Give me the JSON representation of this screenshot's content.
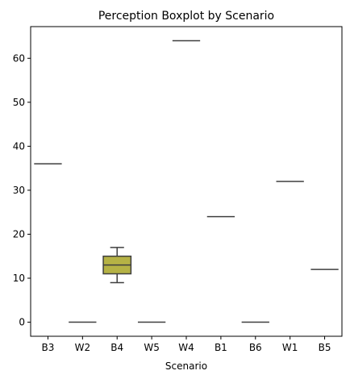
{
  "chart_data": {
    "type": "box",
    "title": "Perception Boxplot by Scenario",
    "xlabel": "Scenario",
    "ylabel": "",
    "ylim": [
      -3.2,
      67.2
    ],
    "yticks": [
      0,
      10,
      20,
      30,
      40,
      50,
      60
    ],
    "grid": false,
    "box_color": "#b5b245",
    "line_color": "#3f3f3f",
    "categories": [
      "B3",
      "W2",
      "B4",
      "W5",
      "W4",
      "B1",
      "B6",
      "W1",
      "B5"
    ],
    "boxes": [
      {
        "category": "B3",
        "min": 36,
        "q1": 36,
        "median": 36,
        "q3": 36,
        "max": 36
      },
      {
        "category": "W2",
        "min": 0,
        "q1": 0,
        "median": 0,
        "q3": 0,
        "max": 0
      },
      {
        "category": "B4",
        "min": 9,
        "q1": 11,
        "median": 13,
        "q3": 15,
        "max": 17
      },
      {
        "category": "W5",
        "min": 0,
        "q1": 0,
        "median": 0,
        "q3": 0,
        "max": 0
      },
      {
        "category": "W4",
        "min": 64,
        "q1": 64,
        "median": 64,
        "q3": 64,
        "max": 64
      },
      {
        "category": "B1",
        "min": 24,
        "q1": 24,
        "median": 24,
        "q3": 24,
        "max": 24
      },
      {
        "category": "B6",
        "min": 0,
        "q1": 0,
        "median": 0,
        "q3": 0,
        "max": 0
      },
      {
        "category": "W1",
        "min": 32,
        "q1": 32,
        "median": 32,
        "q3": 32,
        "max": 32
      },
      {
        "category": "B5",
        "min": 12,
        "q1": 12,
        "median": 12,
        "q3": 12,
        "max": 12
      }
    ]
  }
}
